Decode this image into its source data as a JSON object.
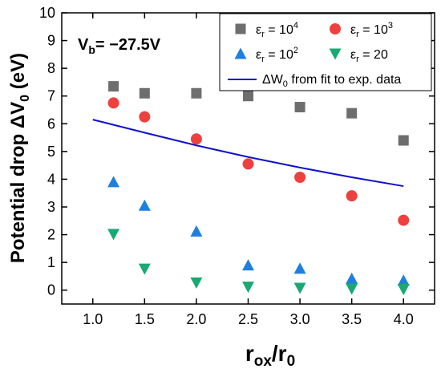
{
  "chart_data": {
    "type": "scatter",
    "xlim": [
      0.7,
      4.3
    ],
    "ylim": [
      -0.5,
      10
    ],
    "x_ticks": [
      "1.0",
      "1.5",
      "2.0",
      "2.5",
      "3.0",
      "3.5",
      "4.0"
    ],
    "y_ticks": [
      "0",
      "1",
      "2",
      "3",
      "4",
      "5",
      "6",
      "7",
      "8",
      "9",
      "10"
    ],
    "xlabel": {
      "main": "r",
      "sub1": "ox",
      "sep": "/r",
      "sub2": "0"
    },
    "ylabel": {
      "main": "Potential drop ΔV",
      "sub": "0",
      "unit": " (eV)"
    },
    "annotation": {
      "prefix": "V",
      "sub": "b",
      "value": "= −27.5V"
    },
    "series": [
      {
        "name": {
          "base": "ε",
          "sub": "r",
          "eq": " = 10",
          "sup": "4"
        },
        "marker": "square",
        "color": "#6e6e6e",
        "x": [
          1.2,
          1.5,
          2.0,
          2.5,
          3.0,
          3.5,
          4.0
        ],
        "y": [
          7.35,
          7.1,
          7.1,
          7.0,
          6.6,
          6.38,
          5.4
        ]
      },
      {
        "name": {
          "base": "ε",
          "sub": "r",
          "eq": " = 10",
          "sup": "3"
        },
        "marker": "circle",
        "color": "#ef4040",
        "x": [
          1.2,
          1.5,
          2.0,
          2.5,
          3.0,
          3.5,
          4.0
        ],
        "y": [
          6.75,
          6.25,
          5.45,
          4.55,
          4.07,
          3.4,
          2.52
        ]
      },
      {
        "name": {
          "base": "ε",
          "sub": "r",
          "eq": " = 10",
          "sup": "2"
        },
        "marker": "triangle-up",
        "color": "#1e7fe0",
        "x": [
          1.2,
          1.5,
          2.0,
          2.5,
          3.0,
          3.5,
          4.0
        ],
        "y": [
          3.9,
          3.05,
          2.12,
          0.9,
          0.78,
          0.42,
          0.35
        ]
      },
      {
        "name": {
          "base": "ε",
          "sub": "r",
          "eq": " = 20",
          "sup": ""
        },
        "marker": "triangle-down",
        "color": "#1aa873",
        "x": [
          1.2,
          1.5,
          2.0,
          2.5,
          3.0,
          3.5,
          4.0
        ],
        "y": [
          2.02,
          0.77,
          0.27,
          0.12,
          0.08,
          0.05,
          0.03
        ]
      }
    ],
    "fit_line": {
      "name": {
        "main": "ΔW",
        "sub": "0",
        "rest": " from fit to exp. data"
      },
      "color": "#1010cc",
      "x": [
        1.0,
        1.5,
        2.0,
        2.5,
        3.0,
        3.5,
        4.0
      ],
      "y": [
        6.15,
        5.68,
        5.22,
        4.8,
        4.42,
        4.07,
        3.75
      ]
    }
  }
}
